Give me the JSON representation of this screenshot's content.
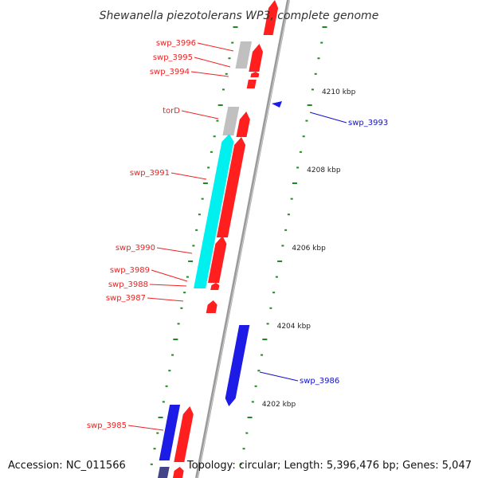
{
  "title": "Shewanella piezotolerans WP3, complete genome",
  "footer": {
    "accession": "Accession: NC_011566",
    "topology": "Topology: circular; Length: 5,396,476 bp; Genes: 5,047"
  },
  "colors": {
    "forward_label": "#ee2222",
    "reverse_label": "#1111cc",
    "backbone": "#9a9a9a",
    "tick": "#228822",
    "forward_cds": "#ff1f1f",
    "reverse_cds": "#1c1ce6",
    "highlight": "#00f0f0",
    "gray_gene": "#c0c0c0"
  },
  "axis": {
    "unit": "kbp",
    "major_ticks": [
      {
        "label": "4202 kbp"
      },
      {
        "label": "4204 kbp"
      },
      {
        "label": "4206 kbp"
      },
      {
        "label": "4208 kbp"
      },
      {
        "label": "4210 kbp"
      }
    ]
  },
  "labels": [
    {
      "text": "swp_3996",
      "strand": "forward"
    },
    {
      "text": "swp_3995",
      "strand": "forward"
    },
    {
      "text": "swp_3994",
      "strand": "forward"
    },
    {
      "text": "torD",
      "strand": "forward"
    },
    {
      "text": "swp_3991",
      "strand": "forward"
    },
    {
      "text": "swp_3990",
      "strand": "forward"
    },
    {
      "text": "swp_3989",
      "strand": "forward"
    },
    {
      "text": "swp_3988",
      "strand": "forward"
    },
    {
      "text": "swp_3987",
      "strand": "forward"
    },
    {
      "text": "swp_3985",
      "strand": "forward"
    },
    {
      "text": "swp_3993",
      "strand": "reverse"
    },
    {
      "text": "swp_3986",
      "strand": "reverse"
    }
  ]
}
